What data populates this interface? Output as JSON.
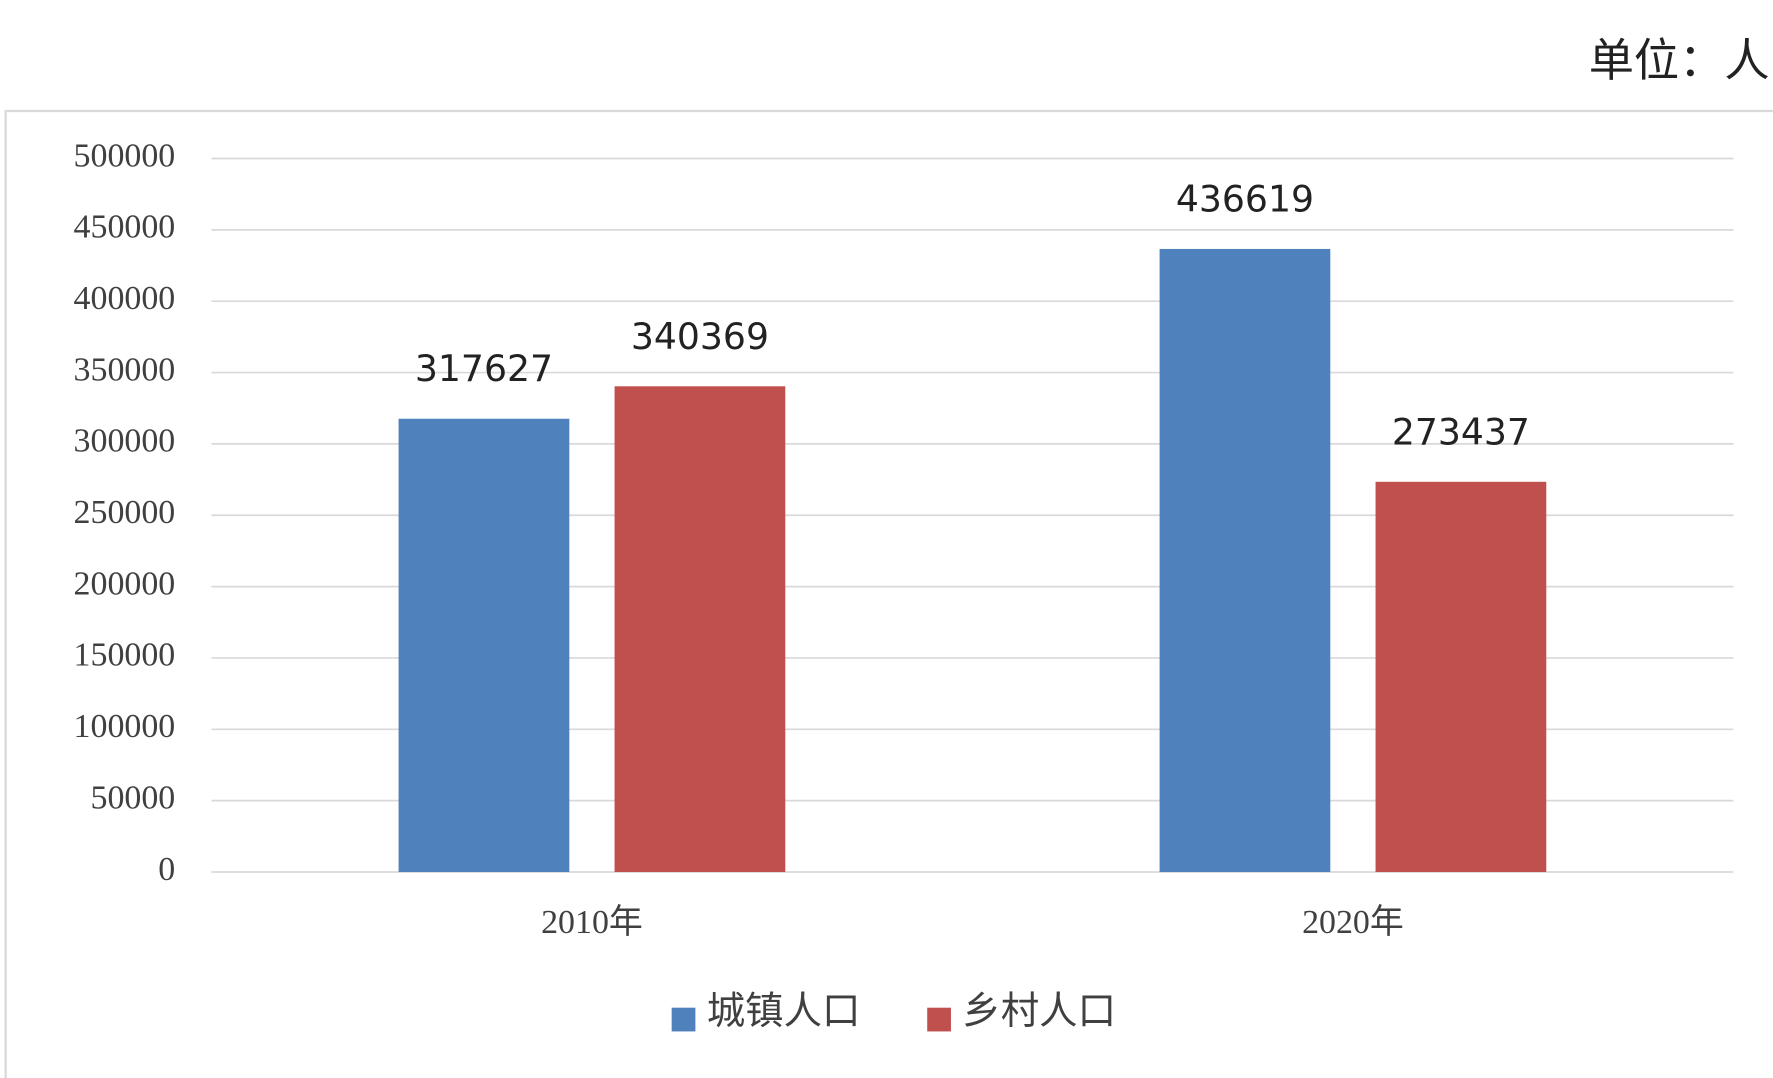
{
  "chart_data": {
    "type": "bar",
    "unit": "单位：人",
    "categories": [
      "2010年",
      "2020年"
    ],
    "series": [
      {
        "name": "城镇人口",
        "color": "#4f81bd",
        "values": [
          317627,
          436619
        ]
      },
      {
        "name": "乡村人口",
        "color": "#c0504d",
        "values": [
          340369,
          273437
        ]
      }
    ],
    "ylim": [
      0,
      500000
    ],
    "yticks": [
      0,
      50000,
      100000,
      150000,
      200000,
      250000,
      300000,
      350000,
      400000,
      450000,
      500000
    ],
    "grid": true,
    "legend": "bottom"
  }
}
